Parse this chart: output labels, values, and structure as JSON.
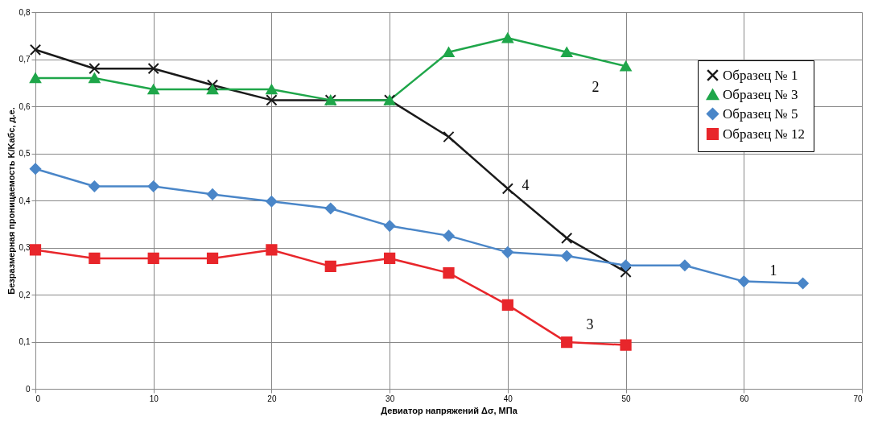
{
  "chart_data": {
    "type": "line",
    "xlabel": "Девиатор напряжений Δσ, МПа",
    "ylabel": "Безразмерная проницаемость K/Kабс, д.е.",
    "xlim": [
      0,
      70
    ],
    "xticks": [
      0,
      10,
      20,
      30,
      40,
      50,
      60,
      70
    ],
    "ylim": [
      0,
      0.8
    ],
    "yticks": [
      {
        "value": 0,
        "label": "0"
      },
      {
        "value": 0.1,
        "label": "0,1"
      },
      {
        "value": 0.2,
        "label": "0,2"
      },
      {
        "value": 0.3,
        "label": "0,3"
      },
      {
        "value": 0.4,
        "label": "0,4"
      },
      {
        "value": 0.5,
        "label": "0,5"
      },
      {
        "value": 0.6,
        "label": "0,6"
      },
      {
        "value": 0.7,
        "label": "0,7"
      },
      {
        "value": 0.8,
        "label": "0,8"
      }
    ],
    "grid": true,
    "legend": "top right",
    "line_style": "solid",
    "series": [
      {
        "name": "Образец № 1",
        "color": "#1a1a1a",
        "marker": "cross",
        "x": [
          0,
          5,
          10,
          15,
          20,
          25,
          30,
          35,
          40,
          45,
          50
        ],
        "values": [
          0.72,
          0.68,
          0.68,
          0.645,
          0.613,
          0.613,
          0.613,
          0.535,
          0.425,
          0.32,
          0.248
        ]
      },
      {
        "name": "Образец № 3",
        "color": "#1fa64a",
        "marker": "triangle",
        "x": [
          0,
          5,
          10,
          15,
          20,
          25,
          30,
          35,
          40,
          45,
          50
        ],
        "values": [
          0.66,
          0.66,
          0.636,
          0.636,
          0.636,
          0.613,
          0.613,
          0.715,
          0.745,
          0.715,
          0.685
        ]
      },
      {
        "name": "Образец № 5",
        "color": "#4a86c8",
        "marker": "diamond",
        "x": [
          0,
          5,
          10,
          15,
          20,
          25,
          30,
          35,
          40,
          45,
          50,
          55,
          60,
          65
        ],
        "values": [
          0.467,
          0.43,
          0.43,
          0.413,
          0.398,
          0.383,
          0.346,
          0.325,
          0.29,
          0.282,
          0.262,
          0.262,
          0.228,
          0.224
        ]
      },
      {
        "name": "Образец № 12",
        "color": "#e8262b",
        "marker": "square",
        "x": [
          0,
          5,
          10,
          15,
          20,
          25,
          30,
          35,
          40,
          45,
          50
        ],
        "values": [
          0.295,
          0.277,
          0.277,
          0.277,
          0.295,
          0.26,
          0.277,
          0.246,
          0.178,
          0.099,
          0.093
        ]
      }
    ],
    "annotations": [
      "2",
      "4",
      "1",
      "3"
    ]
  }
}
